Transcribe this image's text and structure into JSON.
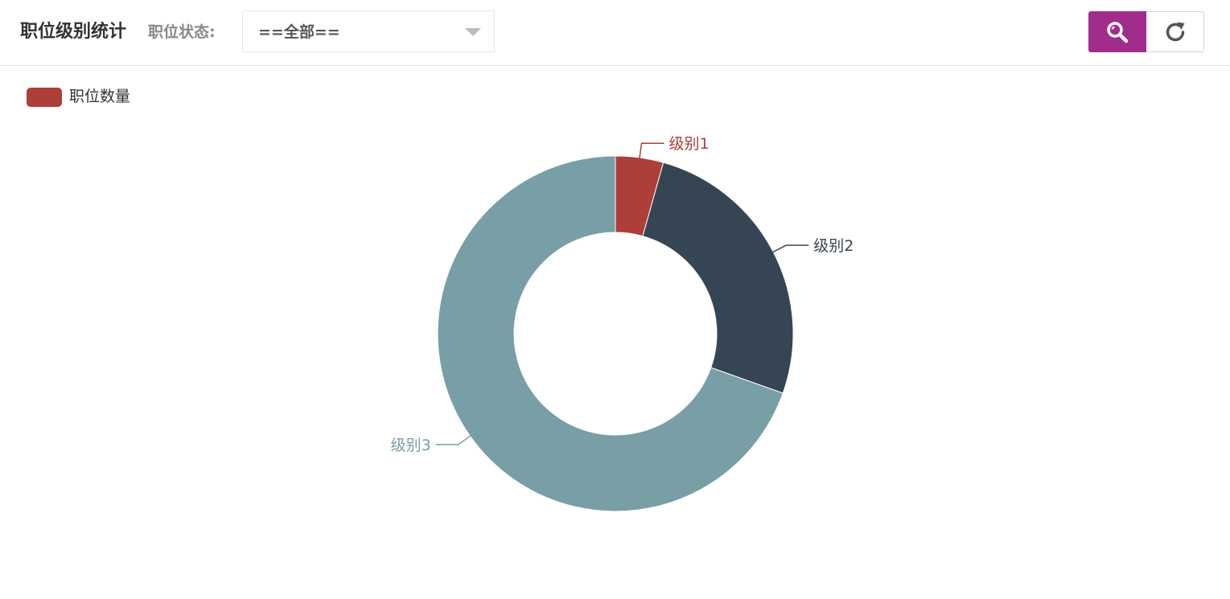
{
  "header": {
    "title": "职位级别统计",
    "filter_label": "职位状态:",
    "filter_value": "==全部=="
  },
  "toolbar": {
    "search_icon": "search-icon",
    "refresh_icon": "refresh-icon",
    "search_color": "#a22c8c"
  },
  "legend": {
    "label": "职位数量",
    "color": "#ad3f38"
  },
  "chart_data": {
    "type": "pie",
    "donut": true,
    "series": [
      {
        "name": "职位数量",
        "slices": [
          {
            "label": "级别1",
            "value": 1,
            "color": "#ad3f38"
          },
          {
            "label": "级别2",
            "value": 6,
            "color": "#354554"
          },
          {
            "label": "级别3",
            "value": 16,
            "color": "#789ea6"
          }
        ]
      }
    ],
    "legend_position": "top-left"
  }
}
